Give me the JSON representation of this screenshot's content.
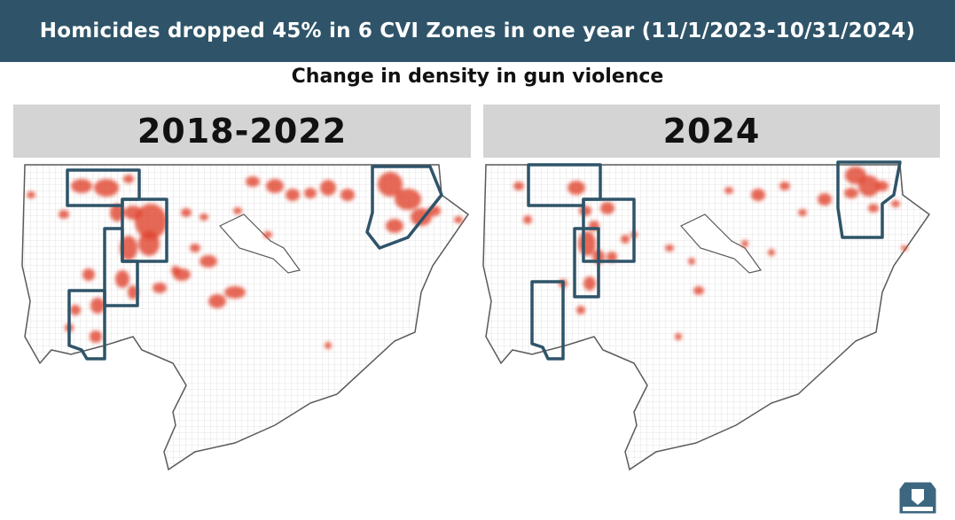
{
  "header": {
    "title": "Homicides dropped 45% in 6 CVI Zones in one year (11/1/2023-10/31/2024)",
    "bg_color": "#2f5469"
  },
  "subtitle": "Change in density in gun violence",
  "panels": [
    {
      "label": "2018-2022"
    },
    {
      "label": "2024"
    }
  ],
  "colors": {
    "zone_outline": "#2f5469",
    "hotspot": "#e0412b",
    "street_grid": "#d9d9d9",
    "map_border": "#5a5a5a"
  },
  "logo": {
    "icon": "police-department-badge-icon"
  }
}
